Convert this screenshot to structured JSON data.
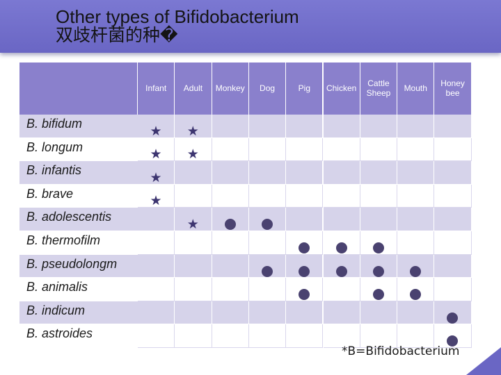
{
  "slide": {
    "title_line1": "Other types of Bifidobacterium",
    "title_line2": "双歧杆菌的种�",
    "footnote": "*B=Bifidobacterium"
  },
  "table": {
    "columns": [
      "Infant",
      "Adult",
      "Monkey",
      "Dog",
      "Pig",
      "Chicken",
      "Cattle\nSheep",
      "Mouth",
      "Honey\nbee"
    ],
    "rows": [
      {
        "name": "B. bifidum",
        "marks": [
          "star",
          "star",
          "",
          "",
          "",
          "",
          "",
          "",
          ""
        ]
      },
      {
        "name": "B. longum",
        "marks": [
          "star",
          "star",
          "",
          "",
          "",
          "",
          "",
          "",
          ""
        ]
      },
      {
        "name": "B. infantis",
        "marks": [
          "star",
          "",
          "",
          "",
          "",
          "",
          "",
          "",
          ""
        ]
      },
      {
        "name": "B. brave",
        "marks": [
          "star",
          "",
          "",
          "",
          "",
          "",
          "",
          "",
          ""
        ]
      },
      {
        "name": "B. adolescentis",
        "marks": [
          "",
          "star",
          "dot",
          "dot",
          "",
          "",
          "",
          "",
          ""
        ]
      },
      {
        "name": "B. thermofilm",
        "marks": [
          "",
          "",
          "",
          "",
          "dot",
          "dot",
          "dot",
          "",
          ""
        ]
      },
      {
        "name": "B. pseudolongm",
        "marks": [
          "",
          "",
          "",
          "dot",
          "dot",
          "dot",
          "dot",
          "dot",
          ""
        ]
      },
      {
        "name": "B. animalis",
        "marks": [
          "",
          "",
          "",
          "",
          "dot",
          "",
          "dot",
          "dot",
          ""
        ]
      },
      {
        "name": "B. indicum",
        "marks": [
          "",
          "",
          "",
          "",
          "",
          "",
          "",
          "",
          "dot"
        ]
      },
      {
        "name": "B. astroides",
        "marks": [
          "",
          "",
          "",
          "",
          "",
          "",
          "",
          "",
          "dot"
        ]
      }
    ]
  },
  "colors": {
    "title_bar": "#6a66c4",
    "header": "#8a80cc",
    "row_shade": "#d6d3ea",
    "mark": "#3d3570"
  }
}
